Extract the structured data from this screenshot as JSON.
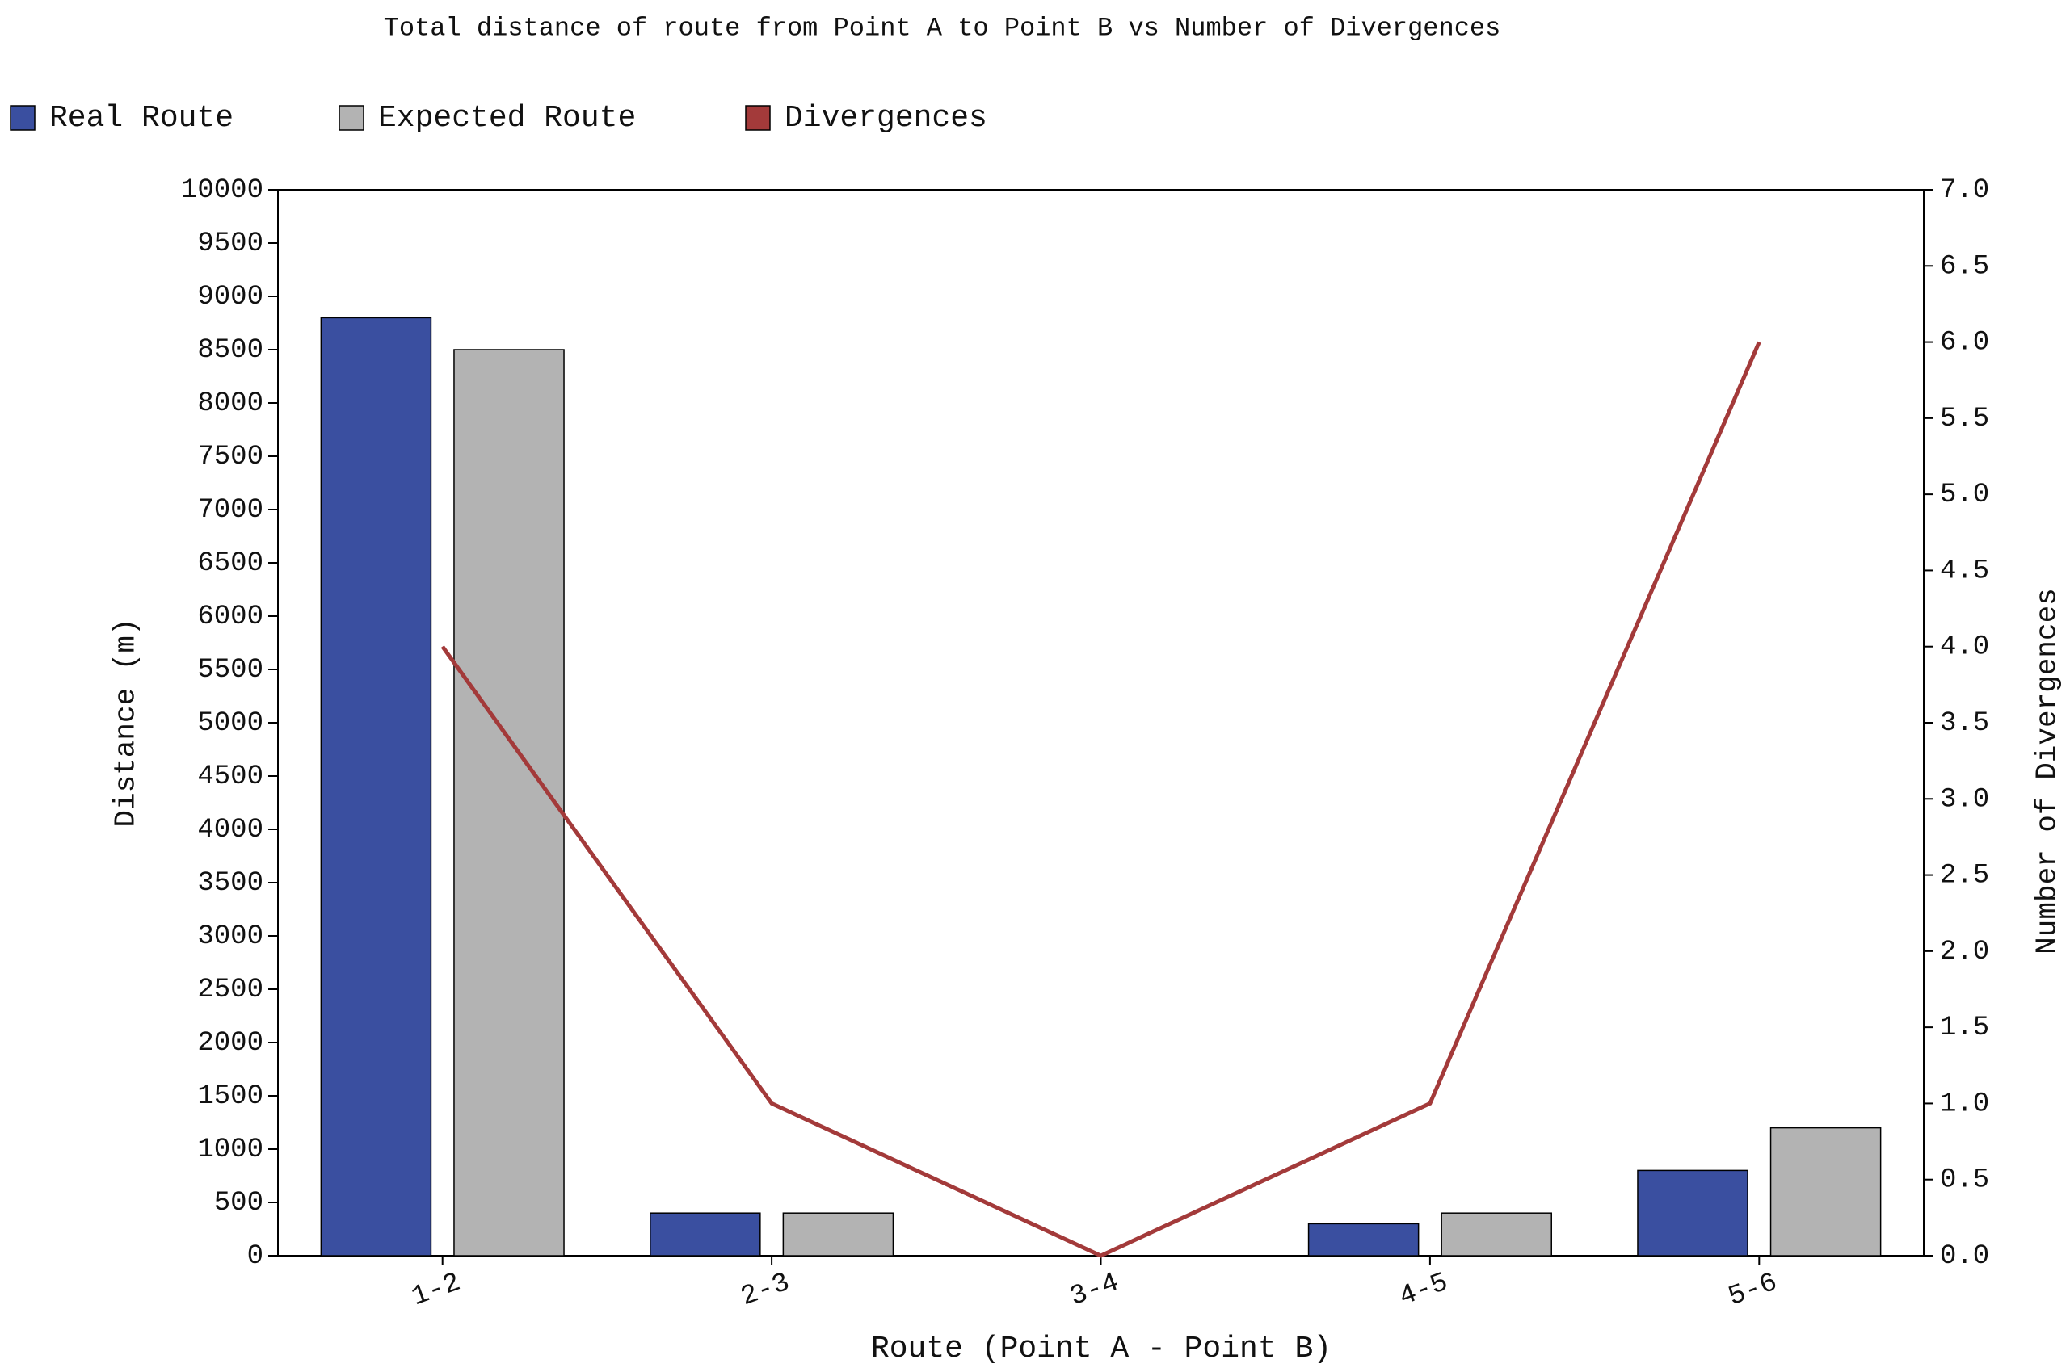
{
  "chart_data": {
    "type": "bar",
    "title": "Total distance of route from Point A to Point B vs Number of Divergences",
    "x_label": "Route (Point A - Point B)",
    "y_label": "Distance (m)",
    "y2_label": "Number of Divergences",
    "categories": [
      "1-2",
      "2-3",
      "3-4",
      "4-5",
      "5-6"
    ],
    "series": [
      {
        "name": "Real Route",
        "color": "#3a4fa0",
        "type": "bar",
        "values": [
          8800,
          400,
          0,
          300,
          800
        ]
      },
      {
        "name": "Expected Route",
        "color": "#b3b3b3",
        "type": "bar",
        "values": [
          8500,
          400,
          0,
          400,
          1200
        ]
      },
      {
        "name": "Divergences",
        "color": "#a33a3a",
        "type": "line",
        "axis": "y2",
        "values": [
          4,
          1,
          0,
          1,
          6
        ]
      }
    ],
    "ylim": [
      0,
      10000
    ],
    "yticks": [
      0,
      500,
      1000,
      1500,
      2000,
      2500,
      3000,
      3500,
      4000,
      4500,
      5000,
      5500,
      6000,
      6500,
      7000,
      7500,
      8000,
      8500,
      9000,
      9500,
      10000
    ],
    "y2lim": [
      0,
      7
    ],
    "y2ticks": [
      {
        "value": 0,
        "label": "0.0"
      },
      {
        "value": 0.5,
        "label": "0.5"
      },
      {
        "value": 1,
        "label": "1.0"
      },
      {
        "value": 1.5,
        "label": "1.5"
      },
      {
        "value": 2,
        "label": "2.0"
      },
      {
        "value": 2.5,
        "label": "2.5"
      },
      {
        "value": 3,
        "label": "3.0"
      },
      {
        "value": 3.5,
        "label": "3.5"
      },
      {
        "value": 4,
        "label": "4.0"
      },
      {
        "value": 4.5,
        "label": "4.5"
      },
      {
        "value": 5,
        "label": "5.0"
      },
      {
        "value": 5.5,
        "label": "5.5"
      },
      {
        "value": 6,
        "label": "6.0"
      },
      {
        "value": 6.5,
        "label": "6.5"
      },
      {
        "value": 7,
        "label": "7.0"
      }
    ],
    "legend": "top-left"
  }
}
